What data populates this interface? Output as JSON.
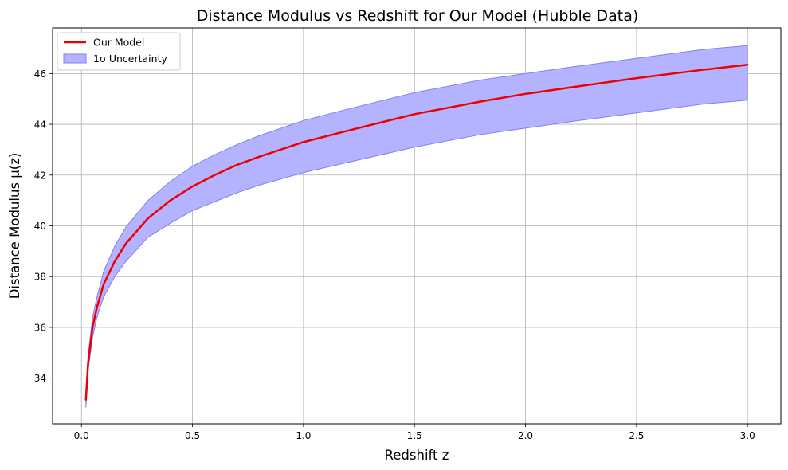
{
  "chart_data": {
    "type": "line",
    "title": "Distance Modulus vs Redshift for Our Model (Hubble Data)",
    "xlabel": "Redshift z",
    "ylabel": "Distance Modulus μ(z)",
    "xlim": [
      -0.13,
      3.15
    ],
    "ylim": [
      32.2,
      47.8
    ],
    "xticks": [
      "0.0",
      "0.5",
      "1.0",
      "1.5",
      "2.0",
      "2.5",
      "3.0"
    ],
    "yticks": [
      "34",
      "36",
      "38",
      "40",
      "42",
      "44",
      "46"
    ],
    "grid": true,
    "legend_position": "top-left",
    "colors": {
      "line": "#ee0000",
      "band_fill": "#b3b3ff",
      "band_edge": "#8080f0"
    },
    "series": [
      {
        "name": "Our Model",
        "kind": "line",
        "x": [
          0.02,
          0.03,
          0.05,
          0.07,
          0.1,
          0.15,
          0.2,
          0.3,
          0.4,
          0.5,
          0.6,
          0.7,
          0.8,
          1.0,
          1.2,
          1.5,
          1.8,
          2.0,
          2.2,
          2.5,
          2.8,
          3.0
        ],
        "y": [
          33.15,
          34.6,
          36.0,
          36.8,
          37.7,
          38.6,
          39.3,
          40.3,
          41.0,
          41.55,
          42.0,
          42.4,
          42.72,
          43.3,
          43.75,
          44.4,
          44.9,
          45.2,
          45.45,
          45.82,
          46.15,
          46.35
        ]
      },
      {
        "name": "1σ Uncertainty",
        "kind": "band",
        "x": [
          0.02,
          0.03,
          0.05,
          0.07,
          0.1,
          0.15,
          0.2,
          0.3,
          0.4,
          0.5,
          0.6,
          0.7,
          0.8,
          1.0,
          1.2,
          1.5,
          1.8,
          2.0,
          2.2,
          2.5,
          2.8,
          3.0
        ],
        "lower": [
          32.85,
          34.3,
          35.6,
          36.4,
          37.2,
          38.0,
          38.6,
          39.55,
          40.1,
          40.6,
          40.95,
          41.3,
          41.6,
          42.1,
          42.5,
          43.1,
          43.6,
          43.85,
          44.1,
          44.45,
          44.8,
          44.95
        ],
        "upper": [
          33.45,
          34.9,
          36.4,
          37.2,
          38.2,
          39.2,
          39.95,
          41.0,
          41.75,
          42.35,
          42.8,
          43.2,
          43.55,
          44.15,
          44.6,
          45.25,
          45.75,
          46.0,
          46.25,
          46.6,
          46.95,
          47.1
        ]
      }
    ]
  }
}
